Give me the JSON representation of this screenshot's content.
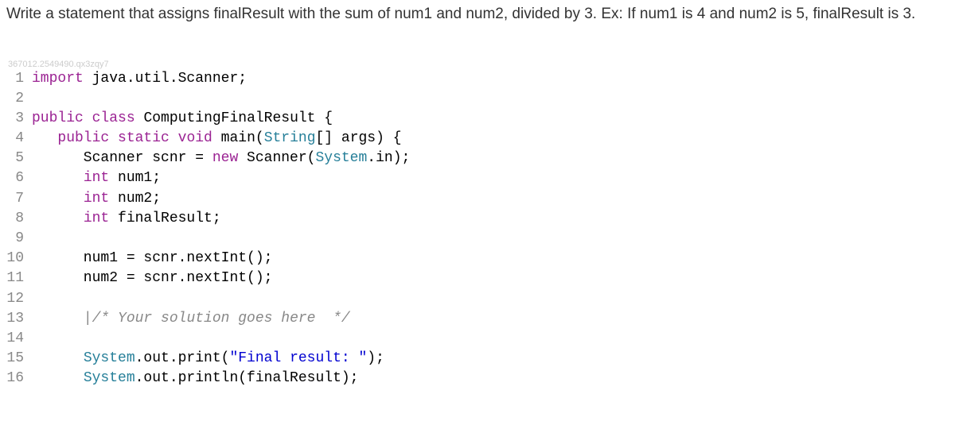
{
  "problem": {
    "text": "Write a statement that assigns finalResult with the sum of num1 and num2, divided by 3. Ex: If num1 is 4 and num2 is 5, finalResult is 3."
  },
  "watermark": "367012.2549490.qx3zqy7",
  "code": {
    "lines": [
      {
        "num": "1",
        "tokens": [
          {
            "cls": "kw-import",
            "t": "import"
          },
          {
            "cls": "plain",
            "t": " java.util.Scanner;"
          }
        ]
      },
      {
        "num": "2",
        "tokens": []
      },
      {
        "num": "3",
        "tokens": [
          {
            "cls": "kw-public",
            "t": "public"
          },
          {
            "cls": "plain",
            "t": " "
          },
          {
            "cls": "kw-class",
            "t": "class"
          },
          {
            "cls": "plain",
            "t": " "
          },
          {
            "cls": "classname",
            "t": "ComputingFinalResult"
          },
          {
            "cls": "plain",
            "t": " {"
          }
        ]
      },
      {
        "num": "4",
        "tokens": [
          {
            "cls": "plain",
            "t": "   "
          },
          {
            "cls": "kw-public",
            "t": "public"
          },
          {
            "cls": "plain",
            "t": " "
          },
          {
            "cls": "kw-static",
            "t": "static"
          },
          {
            "cls": "plain",
            "t": " "
          },
          {
            "cls": "kw-void",
            "t": "void"
          },
          {
            "cls": "plain",
            "t": " main("
          },
          {
            "cls": "type",
            "t": "String"
          },
          {
            "cls": "plain",
            "t": "[] args) {"
          }
        ]
      },
      {
        "num": "5",
        "tokens": [
          {
            "cls": "plain",
            "t": "      Scanner scnr = "
          },
          {
            "cls": "kw-new",
            "t": "new"
          },
          {
            "cls": "plain",
            "t": " Scanner("
          },
          {
            "cls": "type",
            "t": "System"
          },
          {
            "cls": "plain",
            "t": "."
          },
          {
            "cls": "in-field",
            "t": "in"
          },
          {
            "cls": "plain",
            "t": ");"
          }
        ]
      },
      {
        "num": "6",
        "tokens": [
          {
            "cls": "plain",
            "t": "      "
          },
          {
            "cls": "kw-int",
            "t": "int"
          },
          {
            "cls": "plain",
            "t": " num1;"
          }
        ]
      },
      {
        "num": "7",
        "tokens": [
          {
            "cls": "plain",
            "t": "      "
          },
          {
            "cls": "kw-int",
            "t": "int"
          },
          {
            "cls": "plain",
            "t": " num2;"
          }
        ]
      },
      {
        "num": "8",
        "tokens": [
          {
            "cls": "plain",
            "t": "      "
          },
          {
            "cls": "kw-int",
            "t": "int"
          },
          {
            "cls": "plain",
            "t": " finalResult;"
          }
        ]
      },
      {
        "num": "9",
        "tokens": []
      },
      {
        "num": "10",
        "tokens": [
          {
            "cls": "plain",
            "t": "      num1 = scnr.nextInt();"
          }
        ]
      },
      {
        "num": "11",
        "tokens": [
          {
            "cls": "plain",
            "t": "      num2 = scnr.nextInt();"
          }
        ]
      },
      {
        "num": "12",
        "tokens": []
      },
      {
        "num": "13",
        "tokens": [
          {
            "cls": "plain",
            "t": "      "
          },
          {
            "cls": "cursor-mark",
            "t": "|"
          },
          {
            "cls": "comment",
            "t": "/* Your solution goes here  */"
          }
        ]
      },
      {
        "num": "14",
        "tokens": []
      },
      {
        "num": "15",
        "tokens": [
          {
            "cls": "plain",
            "t": "      "
          },
          {
            "cls": "type",
            "t": "System"
          },
          {
            "cls": "plain",
            "t": ".out.print("
          },
          {
            "cls": "string",
            "t": "\"Final result: \""
          },
          {
            "cls": "plain",
            "t": ");"
          }
        ]
      },
      {
        "num": "16",
        "tokens": [
          {
            "cls": "plain",
            "t": "      "
          },
          {
            "cls": "type",
            "t": "System"
          },
          {
            "cls": "plain",
            "t": ".out.println(finalResult);"
          }
        ]
      }
    ]
  },
  "colors": {
    "keyword": "#9b2393",
    "type": "#267f99",
    "string": "#0000d0",
    "comment": "#888888",
    "lineNumber": "#888888",
    "watermark": "#cccccc",
    "text": "#333333",
    "background": "#ffffff"
  },
  "fonts": {
    "body": "-apple-system, Segoe UI, Arial, sans-serif",
    "code": "Consolas, Monaco, Courier New, monospace",
    "problemSize": 19,
    "codeSize": 18
  }
}
